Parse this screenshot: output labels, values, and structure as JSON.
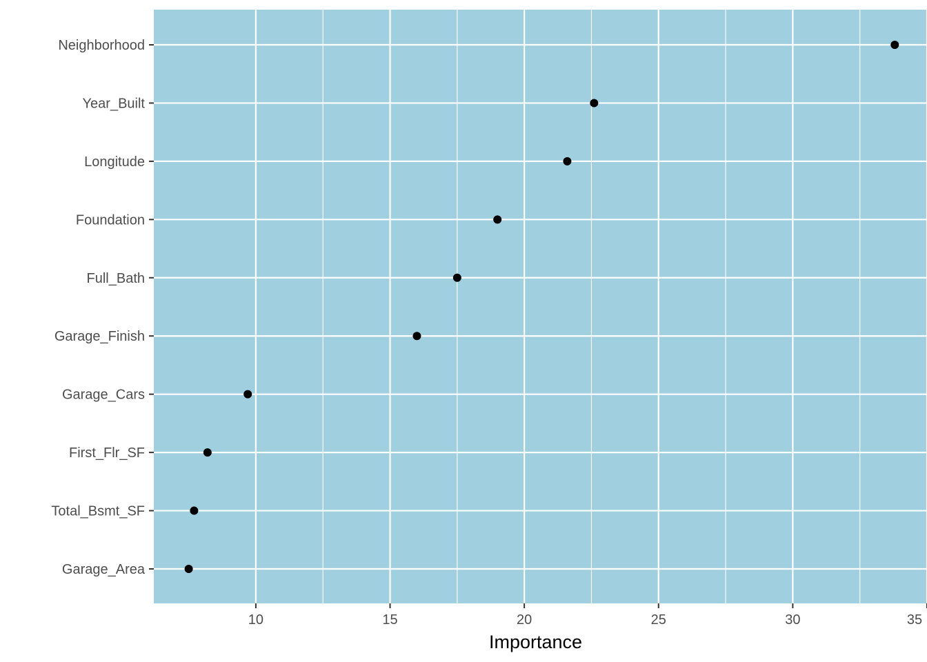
{
  "chart_data": {
    "type": "scatter",
    "title": "",
    "xlabel": "Importance",
    "ylabel": "",
    "xlim": [
      6.2,
      35.0
    ],
    "x_ticks": [
      10,
      15,
      20,
      25,
      30,
      35
    ],
    "x_tick_labels": [
      "10",
      "15",
      "20",
      "25",
      "30",
      "35"
    ],
    "grid": true,
    "legend": "none",
    "colors": {
      "panel": "#a0cfe0",
      "grid": "#ffffff",
      "point": "#000000",
      "tick_text": "#4d4d4d",
      "title_text": "#000000"
    },
    "categories": [
      "Neighborhood",
      "Year_Built",
      "Longitude",
      "Foundation",
      "Full_Bath",
      "Garage_Finish",
      "Garage_Cars",
      "First_Flr_SF",
      "Total_Bsmt_SF",
      "Garage_Area"
    ],
    "values": [
      33.8,
      22.6,
      21.6,
      19.0,
      17.5,
      16.0,
      9.7,
      8.2,
      7.7,
      7.5
    ]
  }
}
